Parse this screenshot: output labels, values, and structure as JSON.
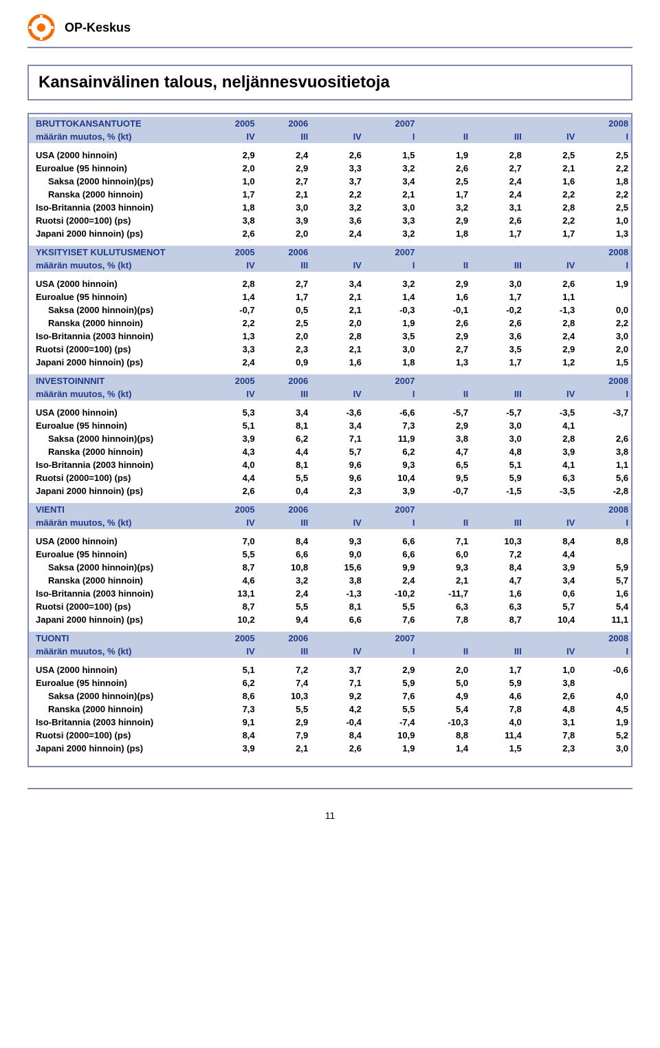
{
  "header": {
    "org_name": "OP-Keskus",
    "logo_colors": {
      "ring": "#ff6a00",
      "inner": "#ffffff"
    }
  },
  "title": "Kansainvälinen talous, neljännesvuositietoja",
  "colors": {
    "rule": "#7b8ab8",
    "section_bg": "#c3cde4",
    "section_fg": "#1d3b8b"
  },
  "columns": {
    "year_groups": [
      "2005",
      "2006",
      "",
      "2007",
      "",
      "",
      "",
      "2008"
    ],
    "quarter_labels": [
      "IV",
      "III",
      "IV",
      "I",
      "II",
      "III",
      "IV",
      "I"
    ]
  },
  "row_labels": {
    "usa": "USA (2000 hinnoin)",
    "euro": "Euroalue (95 hinnoin)",
    "saksa": "Saksa (2000 hinnoin)(ps)",
    "ranska": "Ranska (2000 hinnoin)",
    "uk": "Iso-Britannia (2003 hinnoin)",
    "ruotsi": "Ruotsi (2000=100) (ps)",
    "japani": "Japani 2000 hinnoin) (ps)"
  },
  "sections": [
    {
      "title": "BRUTTOKANSANTUOTE",
      "subtitle": "määrän muutos, % (kt)",
      "rows": [
        {
          "key": "usa",
          "v": [
            "2,9",
            "2,4",
            "2,6",
            "1,5",
            "1,9",
            "2,8",
            "2,5",
            "2,5"
          ]
        },
        {
          "key": "euro",
          "v": [
            "2,0",
            "2,9",
            "3,3",
            "3,2",
            "2,6",
            "2,7",
            "2,1",
            "2,2"
          ]
        },
        {
          "key": "saksa",
          "v": [
            "1,0",
            "2,7",
            "3,7",
            "3,4",
            "2,5",
            "2,4",
            "1,6",
            "1,8"
          ],
          "indent": true
        },
        {
          "key": "ranska",
          "v": [
            "1,7",
            "2,1",
            "2,2",
            "2,1",
            "1,7",
            "2,4",
            "2,2",
            "2,2"
          ],
          "indent": true
        },
        {
          "key": "uk",
          "v": [
            "1,8",
            "3,0",
            "3,2",
            "3,0",
            "3,2",
            "3,1",
            "2,8",
            "2,5"
          ]
        },
        {
          "key": "ruotsi",
          "v": [
            "3,8",
            "3,9",
            "3,6",
            "3,3",
            "2,9",
            "2,6",
            "2,2",
            "1,0"
          ]
        },
        {
          "key": "japani",
          "v": [
            "2,6",
            "2,0",
            "2,4",
            "3,2",
            "1,8",
            "1,7",
            "1,7",
            "1,3"
          ]
        }
      ]
    },
    {
      "title": "YKSITYISET KULUTUSMENOT",
      "subtitle": "määrän muutos, % (kt)",
      "rows": [
        {
          "key": "usa",
          "v": [
            "2,8",
            "2,7",
            "3,4",
            "3,2",
            "2,9",
            "3,0",
            "2,6",
            "1,9"
          ]
        },
        {
          "key": "euro",
          "v": [
            "1,4",
            "1,7",
            "2,1",
            "1,4",
            "1,6",
            "1,7",
            "1,1",
            ""
          ]
        },
        {
          "key": "saksa",
          "v": [
            "-0,7",
            "0,5",
            "2,1",
            "-0,3",
            "-0,1",
            "-0,2",
            "-1,3",
            "0,0"
          ],
          "indent": true
        },
        {
          "key": "ranska",
          "v": [
            "2,2",
            "2,5",
            "2,0",
            "1,9",
            "2,6",
            "2,6",
            "2,8",
            "2,2"
          ],
          "indent": true
        },
        {
          "key": "uk",
          "v": [
            "1,3",
            "2,0",
            "2,8",
            "3,5",
            "2,9",
            "3,6",
            "2,4",
            "3,0"
          ]
        },
        {
          "key": "ruotsi",
          "v": [
            "3,3",
            "2,3",
            "2,1",
            "3,0",
            "2,7",
            "3,5",
            "2,9",
            "2,0"
          ]
        },
        {
          "key": "japani",
          "v": [
            "2,4",
            "0,9",
            "1,6",
            "1,8",
            "1,3",
            "1,7",
            "1,2",
            "1,5"
          ]
        }
      ]
    },
    {
      "title": "INVESTOINNNIT",
      "subtitle": "määrän muutos, % (kt)",
      "rows": [
        {
          "key": "usa",
          "v": [
            "5,3",
            "3,4",
            "-3,6",
            "-6,6",
            "-5,7",
            "-5,7",
            "-3,5",
            "-3,7"
          ]
        },
        {
          "key": "euro",
          "v": [
            "5,1",
            "8,1",
            "3,4",
            "7,3",
            "2,9",
            "3,0",
            "4,1",
            ""
          ]
        },
        {
          "key": "saksa",
          "v": [
            "3,9",
            "6,2",
            "7,1",
            "11,9",
            "3,8",
            "3,0",
            "2,8",
            "2,6"
          ],
          "indent": true
        },
        {
          "key": "ranska",
          "v": [
            "4,3",
            "4,4",
            "5,7",
            "6,2",
            "4,7",
            "4,8",
            "3,9",
            "3,8"
          ],
          "indent": true
        },
        {
          "key": "uk",
          "v": [
            "4,0",
            "8,1",
            "9,6",
            "9,3",
            "6,5",
            "5,1",
            "4,1",
            "1,1"
          ]
        },
        {
          "key": "ruotsi",
          "v": [
            "4,4",
            "5,5",
            "9,6",
            "10,4",
            "9,5",
            "5,9",
            "6,3",
            "5,6"
          ]
        },
        {
          "key": "japani",
          "v": [
            "2,6",
            "0,4",
            "2,3",
            "3,9",
            "-0,7",
            "-1,5",
            "-3,5",
            "-2,8"
          ]
        }
      ]
    },
    {
      "title": "VIENTI",
      "subtitle": "määrän muutos, % (kt)",
      "rows": [
        {
          "key": "usa",
          "v": [
            "7,0",
            "8,4",
            "9,3",
            "6,6",
            "7,1",
            "10,3",
            "8,4",
            "8,8"
          ]
        },
        {
          "key": "euro",
          "v": [
            "5,5",
            "6,6",
            "9,0",
            "6,6",
            "6,0",
            "7,2",
            "4,4",
            ""
          ]
        },
        {
          "key": "saksa",
          "v": [
            "8,7",
            "10,8",
            "15,6",
            "9,9",
            "9,3",
            "8,4",
            "3,9",
            "5,9"
          ],
          "indent": true
        },
        {
          "key": "ranska",
          "v": [
            "4,6",
            "3,2",
            "3,8",
            "2,4",
            "2,1",
            "4,7",
            "3,4",
            "5,7"
          ],
          "indent": true
        },
        {
          "key": "uk",
          "v": [
            "13,1",
            "2,4",
            "-1,3",
            "-10,2",
            "-11,7",
            "1,6",
            "0,6",
            "1,6"
          ]
        },
        {
          "key": "ruotsi",
          "v": [
            "8,7",
            "5,5",
            "8,1",
            "5,5",
            "6,3",
            "6,3",
            "5,7",
            "5,4"
          ]
        },
        {
          "key": "japani",
          "v": [
            "10,2",
            "9,4",
            "6,6",
            "7,6",
            "7,8",
            "8,7",
            "10,4",
            "11,1"
          ]
        }
      ]
    },
    {
      "title": "TUONTI",
      "subtitle": "määrän muutos, % (kt)",
      "rows": [
        {
          "key": "usa",
          "v": [
            "5,1",
            "7,2",
            "3,7",
            "2,9",
            "2,0",
            "1,7",
            "1,0",
            "-0,6"
          ]
        },
        {
          "key": "euro",
          "v": [
            "6,2",
            "7,4",
            "7,1",
            "5,9",
            "5,0",
            "5,9",
            "3,8",
            ""
          ]
        },
        {
          "key": "saksa",
          "v": [
            "8,6",
            "10,3",
            "9,2",
            "7,6",
            "4,9",
            "4,6",
            "2,6",
            "4,0"
          ],
          "indent": true
        },
        {
          "key": "ranska",
          "v": [
            "7,3",
            "5,5",
            "4,2",
            "5,5",
            "5,4",
            "7,8",
            "4,8",
            "4,5"
          ],
          "indent": true
        },
        {
          "key": "uk",
          "v": [
            "9,1",
            "2,9",
            "-0,4",
            "-7,4",
            "-10,3",
            "4,0",
            "3,1",
            "1,9"
          ]
        },
        {
          "key": "ruotsi",
          "v": [
            "8,4",
            "7,9",
            "8,4",
            "10,9",
            "8,8",
            "11,4",
            "7,8",
            "5,2"
          ]
        },
        {
          "key": "japani",
          "v": [
            "3,9",
            "2,1",
            "2,6",
            "1,9",
            "1,4",
            "1,5",
            "2,3",
            "3,0"
          ]
        }
      ]
    }
  ],
  "page_number": "11"
}
